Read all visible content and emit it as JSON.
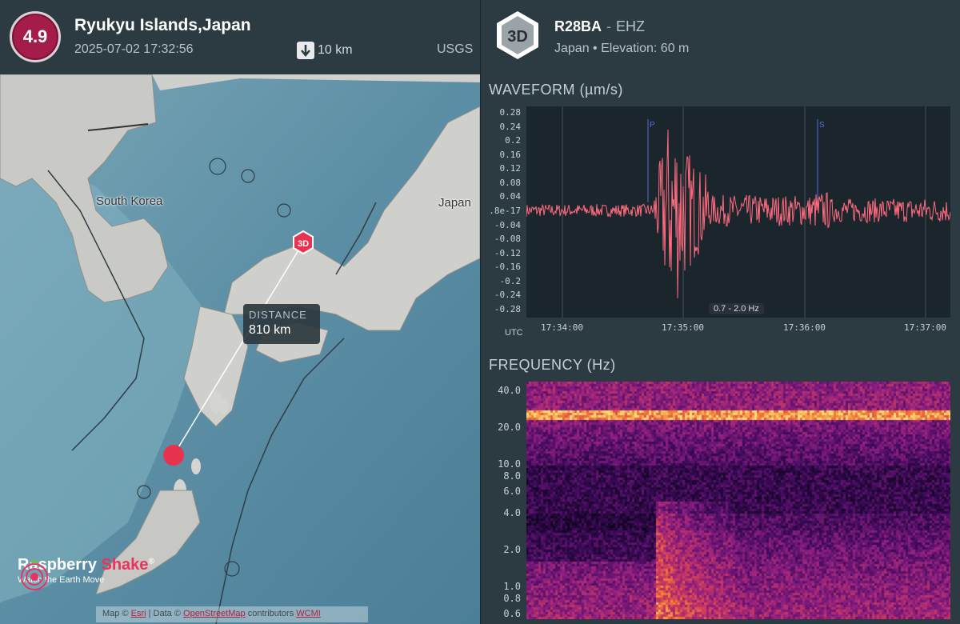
{
  "event": {
    "magnitude": "4.9",
    "region": "Ryukyu Islands,Japan",
    "datetime": "2025-07-02 17:32:56",
    "depth": "10 km",
    "source": "USGS",
    "magnitude_color": "#a31c4a"
  },
  "map": {
    "labels": {
      "korea": "South Korea",
      "japan": "Japan"
    },
    "station_marker": "3D",
    "distance_title": "DISTANCE",
    "distance_value": "810 km",
    "brand_name_1": "Raspberry",
    "brand_name_2": "Shake",
    "brand_reg": "®",
    "brand_tagline": "Watch the Earth Move",
    "attribution": {
      "prefix": "Map ©",
      "link1": "Esri",
      "middle": "| Data ©",
      "link2": "OpenStreetMap",
      "suffix": "contributors",
      "link3": "WCMI"
    }
  },
  "station": {
    "badge": "3D",
    "name": "R28BA",
    "separator": "-",
    "channel": "EHZ",
    "info": "Japan • Elevation: 60 m"
  },
  "waveform": {
    "title": "WAVEFORM (µm/s)",
    "y_ticks": [
      "0.28",
      "0.24",
      "0.2",
      "0.16",
      "0.12",
      "0.08",
      "0.04",
      ".8e-17",
      "-0.04",
      "-0.08",
      "-0.12",
      "-0.16",
      "-0.2",
      "-0.24",
      "-0.28"
    ],
    "x_ticks": [
      "17:34:00",
      "17:35:00",
      "17:36:00",
      "17:37:00"
    ],
    "utc_label": "UTC",
    "filter_label": "0.7 - 2.0 Hz",
    "phase_p": "P",
    "phase_s": "S",
    "line_color": "#ff6b7f"
  },
  "frequency": {
    "title": "FREQUENCY (Hz)",
    "y_ticks": [
      "40.0",
      "20.0",
      "10.0",
      "8.0",
      "6.0",
      "4.0",
      "2.0",
      "1.0",
      "0.8",
      "0.6"
    ]
  },
  "chart_data": {
    "type": "line",
    "title": "WAVEFORM (µm/s)",
    "xlabel": "UTC",
    "ylabel": "µm/s",
    "ylim": [
      -0.3,
      0.3
    ],
    "x_ticks": [
      "17:34:00",
      "17:35:00",
      "17:36:00",
      "17:37:00"
    ],
    "phase_markers": [
      {
        "name": "P",
        "time": "17:34:46"
      },
      {
        "name": "S",
        "time": "17:36:07"
      }
    ],
    "peak_amplitude": 0.28,
    "peak_time": "17:34:52"
  }
}
